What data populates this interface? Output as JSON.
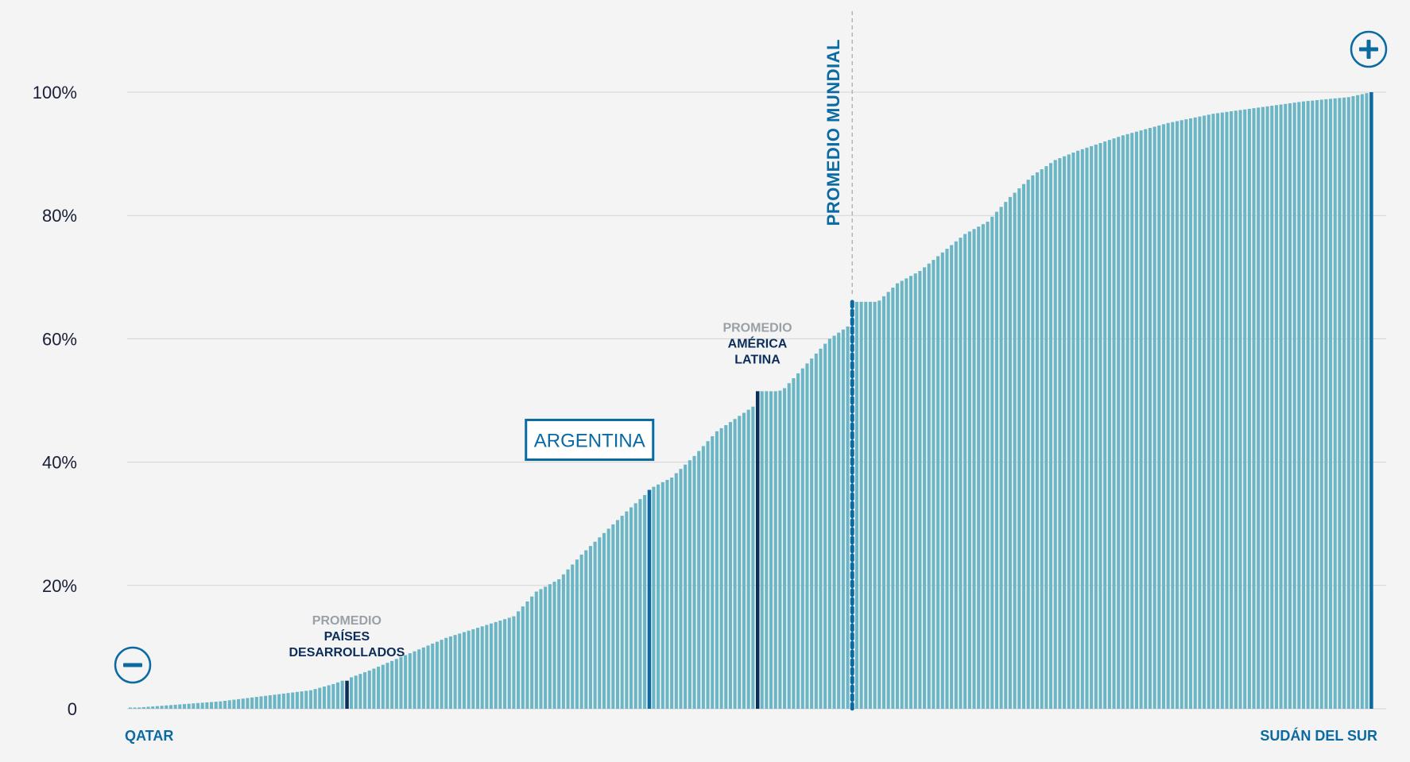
{
  "colors": {
    "bar": "#6bb5c4",
    "highlight_blue": "#0a6aa1",
    "highlight_navy": "#0b2d5a",
    "grid": "#d3d3d3",
    "label_blue": "#0a6aa1",
    "annotation_gray": "#9aa0a6",
    "annotation_dark": "#0b2d5a"
  },
  "zoom_in": {
    "icon": "plus-icon"
  },
  "zoom_out": {
    "icon": "minus-icon"
  },
  "chart_data": {
    "type": "bar",
    "ylim": [
      0,
      100
    ],
    "yticks": [
      0,
      20,
      40,
      60,
      80,
      100
    ],
    "ytick_labels": [
      "0",
      "20%",
      "40%",
      "60%",
      "80%",
      "100%"
    ],
    "grid": true,
    "first_label": "QATAR",
    "last_label": "SUDÁN DEL SUR",
    "anchors": [
      [
        0,
        0.1
      ],
      [
        20,
        1.2
      ],
      [
        40,
        3.0
      ],
      [
        45,
        4.0
      ],
      [
        53,
        6.2
      ],
      [
        70,
        11.5
      ],
      [
        85,
        15.0
      ],
      [
        90,
        19.0
      ],
      [
        95,
        21.0
      ],
      [
        100,
        25.0
      ],
      [
        105,
        28.5
      ],
      [
        110,
        32.0
      ],
      [
        116,
        36.0
      ],
      [
        120,
        37.5
      ],
      [
        125,
        41.0
      ],
      [
        130,
        45.0
      ],
      [
        140,
        50.0
      ],
      [
        145,
        52.0
      ],
      [
        150,
        56.0
      ],
      [
        155,
        60.0
      ],
      [
        160,
        62.5
      ],
      [
        165,
        65.5
      ],
      [
        170,
        69.0
      ],
      [
        175,
        71.0
      ],
      [
        180,
        74.0
      ],
      [
        185,
        77.0
      ],
      [
        190,
        79.0
      ],
      [
        195,
        83.0
      ],
      [
        200,
        86.5
      ],
      [
        205,
        89.0
      ],
      [
        210,
        90.5
      ],
      [
        220,
        93.0
      ],
      [
        230,
        95.0
      ],
      [
        240,
        96.5
      ],
      [
        250,
        97.5
      ],
      [
        260,
        98.5
      ],
      [
        270,
        99.2
      ],
      [
        275,
        100.0
      ]
    ],
    "highlights": [
      {
        "index": 48,
        "value": 4.0,
        "color": "#0b2d5a",
        "style": "solid",
        "label_top": "PROMEDIO",
        "label_lines": [
          "PAÍSES",
          "DESARROLLADOS"
        ]
      },
      {
        "index": 115,
        "value": 35.5,
        "color": "#0a6aa1",
        "style": "solid",
        "callout": "ARGENTINA"
      },
      {
        "index": 139,
        "value": 51.5,
        "color": "#0b2d5a",
        "style": "solid",
        "label_top": "PROMEDIO",
        "label_lines": [
          "AMÉRICA",
          "LATINA"
        ]
      },
      {
        "index": 160,
        "value": 66.0,
        "color": "#0a6aa1",
        "style": "dashed",
        "vertical_label": "PROMEDIO MUNDIAL"
      },
      {
        "index": 275,
        "value": 100.0,
        "color": "#0a6aa1",
        "style": "solid"
      }
    ]
  }
}
